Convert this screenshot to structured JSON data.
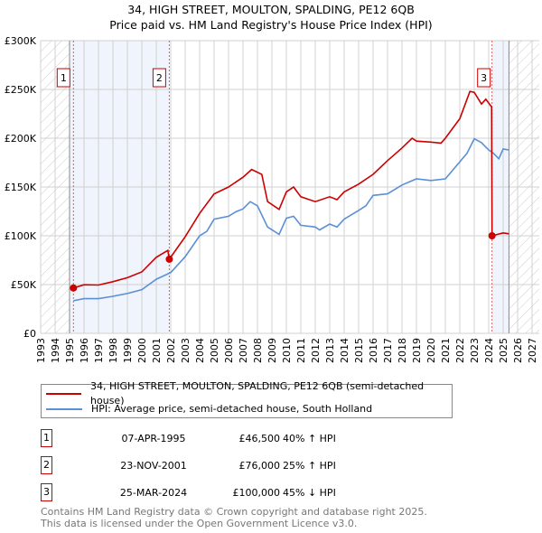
{
  "header": {
    "title": "34, HIGH STREET, MOULTON, SPALDING, PE12 6QB",
    "subtitle": "Price paid vs. HM Land Registry's House Price Index (HPI)"
  },
  "chart_data": {
    "type": "line",
    "title": "34, HIGH STREET, MOULTON, SPALDING, PE12 6QB",
    "subtitle": "Price paid vs. HM Land Registry's House Price Index (HPI)",
    "xlim": [
      1993,
      2027.5
    ],
    "ylim": [
      0,
      300000
    ],
    "grid": true,
    "x_ticks": [
      "1993",
      "1994",
      "1995",
      "1996",
      "1997",
      "1998",
      "1999",
      "2000",
      "2001",
      "2002",
      "2003",
      "2004",
      "2005",
      "2006",
      "2007",
      "2008",
      "2009",
      "2010",
      "2011",
      "2012",
      "2013",
      "2014",
      "2015",
      "2016",
      "2017",
      "2018",
      "2019",
      "2020",
      "2021",
      "2022",
      "2023",
      "2024",
      "2025",
      "2026",
      "2027"
    ],
    "y_ticks": [
      {
        "v": 0,
        "label": "£0"
      },
      {
        "v": 50000,
        "label": "£50K"
      },
      {
        "v": 100000,
        "label": "£100K"
      },
      {
        "v": 150000,
        "label": "£150K"
      },
      {
        "v": 200000,
        "label": "£200K"
      },
      {
        "v": 250000,
        "label": "£250K"
      },
      {
        "v": 300000,
        "label": "£300K"
      }
    ],
    "colors": {
      "property": "#cc0000",
      "hpi": "#5b8fd6"
    },
    "series": [
      {
        "name": "34, HIGH STREET, MOULTON, SPALDING, PE12 6QB (semi-detached house)",
        "color": "#cc0000",
        "x": [
          1995.27,
          1996,
          1997,
          1998,
          1999,
          2000,
          2001,
          2001.8,
          2001.9,
          2003,
          2004,
          2005,
          2006,
          2007,
          2007.6,
          2008.3,
          2008.7,
          2009.5,
          2010,
          2010.5,
          2011,
          2012,
          2013,
          2013.5,
          2014,
          2015,
          2016,
          2017,
          2018,
          2018.7,
          2019,
          2020,
          2020.7,
          2021,
          2022,
          2022.7,
          2023,
          2023.5,
          2023.8,
          2024.2,
          2024.23,
          2024.5,
          2025,
          2025.4
        ],
        "y": [
          46500,
          49800,
          49500,
          53000,
          57000,
          63000,
          78000,
          85000,
          76000,
          99000,
          123000,
          143000,
          150000,
          160000,
          168000,
          163000,
          135000,
          127000,
          145000,
          150000,
          140000,
          135000,
          140000,
          137000,
          145000,
          153000,
          163000,
          177000,
          190000,
          200000,
          197000,
          196000,
          195000,
          200000,
          220000,
          248000,
          247000,
          235000,
          240000,
          232000,
          100000,
          101000,
          103000,
          102000
        ]
      },
      {
        "name": "HPI: Average price, semi-detached house, South Holland",
        "color": "#5b8fd6",
        "x": [
          1995.27,
          1996,
          1997,
          1998,
          1999,
          2000,
          2001,
          2002,
          2003,
          2004,
          2004.5,
          2005,
          2006,
          2006.5,
          2007,
          2007.5,
          2008,
          2008.7,
          2009.5,
          2010,
          2010.5,
          2011,
          2012,
          2012.3,
          2013,
          2013.5,
          2014,
          2015,
          2015.5,
          2016,
          2017,
          2018,
          2019,
          2020,
          2021,
          2022,
          2022.5,
          2023,
          2023.5,
          2024,
          2024.3,
          2024.7,
          2025,
          2025.4
        ],
        "y": [
          33400,
          35600,
          35600,
          38000,
          40800,
          44800,
          55500,
          62300,
          78500,
          100000,
          104600,
          117000,
          120000,
          124500,
          127600,
          135000,
          130700,
          109000,
          101500,
          118000,
          120000,
          110700,
          109000,
          106000,
          112000,
          109000,
          117000,
          126000,
          130700,
          141400,
          143000,
          152000,
          158300,
          156700,
          158300,
          175800,
          184500,
          199400,
          195500,
          188000,
          185000,
          179000,
          189000,
          188000
        ]
      }
    ],
    "sales": [
      {
        "label": "1",
        "x": 1995.27,
        "y": 46500
      },
      {
        "label": "2",
        "x": 2001.9,
        "y": 76000
      },
      {
        "label": "3",
        "x": 2024.23,
        "y": 100000
      }
    ],
    "legend_placement": "below"
  },
  "legend": {
    "property": "34, HIGH STREET, MOULTON, SPALDING, PE12 6QB (semi-detached house)",
    "hpi": "HPI: Average price, semi-detached house, South Holland"
  },
  "transactions": [
    {
      "num": "1",
      "date": "07-APR-1995",
      "price": "£46,500",
      "hpi": "40% ↑ HPI"
    },
    {
      "num": "2",
      "date": "23-NOV-2001",
      "price": "£76,000",
      "hpi": "25% ↑ HPI"
    },
    {
      "num": "3",
      "date": "25-MAR-2024",
      "price": "£100,000",
      "hpi": "45% ↓ HPI"
    }
  ],
  "footer": {
    "line1": "Contains HM Land Registry data © Crown copyright and database right 2025.",
    "line2": "This data is licensed under the Open Government Licence v3.0."
  }
}
